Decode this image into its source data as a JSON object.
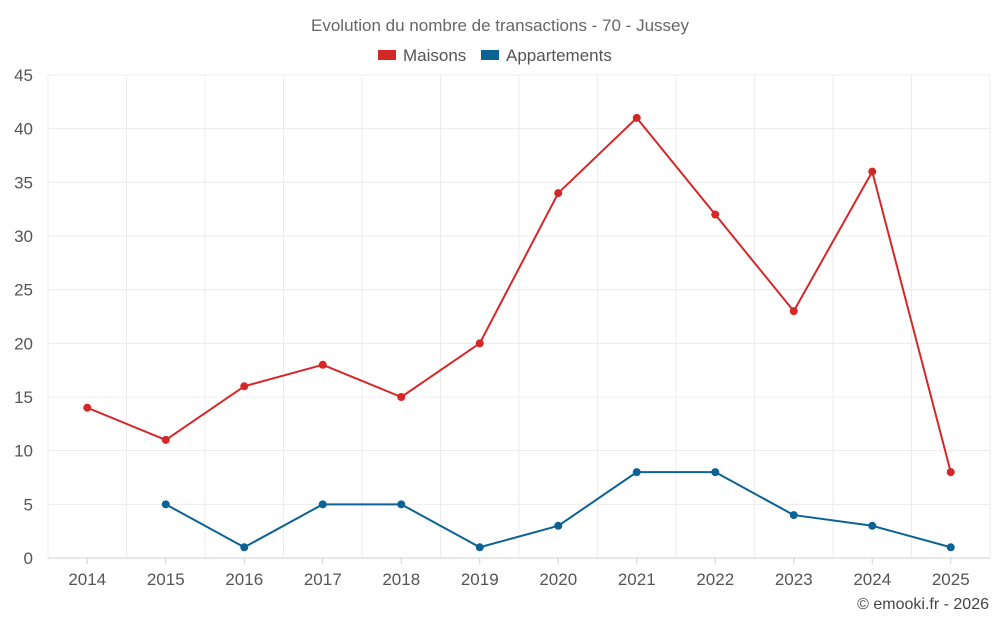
{
  "chart_data": {
    "type": "line",
    "title": "Evolution du nombre de transactions - 70 - Jussey",
    "xlabel": "",
    "ylabel": "",
    "categories": [
      "2014",
      "2015",
      "2016",
      "2017",
      "2018",
      "2019",
      "2020",
      "2021",
      "2022",
      "2023",
      "2024",
      "2025"
    ],
    "ylim": [
      0,
      45
    ],
    "yticks": [
      0,
      5,
      10,
      15,
      20,
      25,
      30,
      35,
      40,
      45
    ],
    "grid": true,
    "legend_position": "top-center",
    "series": [
      {
        "name": "Maisons",
        "color": "#d62728",
        "values": [
          14,
          11,
          16,
          18,
          15,
          20,
          34,
          41,
          32,
          23,
          36,
          8
        ]
      },
      {
        "name": "Appartements",
        "color": "#0b6294",
        "values": [
          null,
          5,
          1,
          5,
          5,
          1,
          3,
          8,
          8,
          4,
          3,
          1
        ]
      }
    ]
  },
  "credit": "© emooki.fr - 2026"
}
